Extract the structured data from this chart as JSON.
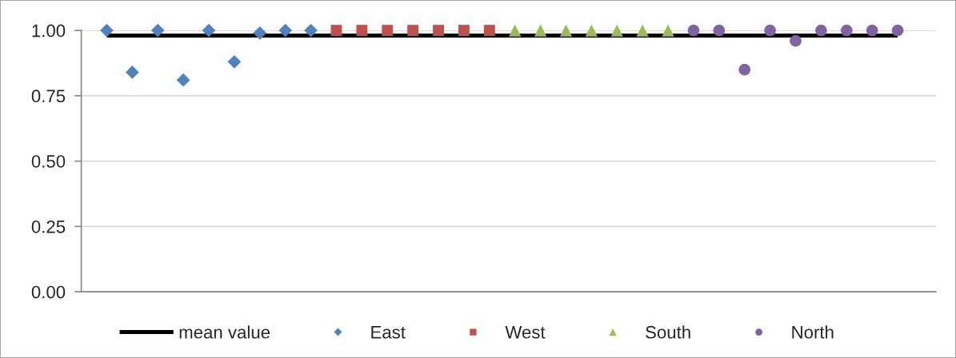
{
  "chart_data": {
    "type": "scatter",
    "categories": [
      null,
      null,
      null,
      null,
      null,
      null,
      null,
      null,
      null,
      null,
      null,
      null,
      null,
      null,
      null,
      null,
      null,
      null,
      null,
      null,
      null,
      null,
      null,
      null,
      null,
      null,
      null,
      null,
      null,
      null,
      null,
      null
    ],
    "series": [
      {
        "name": "mean value",
        "type": "line",
        "color": "#000000",
        "marker": "none",
        "values": [
          0.98,
          0.98,
          0.98,
          0.98,
          0.98,
          0.98,
          0.98,
          0.98,
          0.98,
          0.98,
          0.98,
          0.98,
          0.98,
          0.98,
          0.98,
          0.98,
          0.98,
          0.98,
          0.98,
          0.98,
          0.98,
          0.98,
          0.98,
          0.98,
          0.98,
          0.98,
          0.98,
          0.98,
          0.98,
          0.98,
          0.98,
          0.98
        ]
      },
      {
        "name": "East",
        "color": "#4f81bd",
        "marker": "diamond",
        "values": [
          1.0,
          0.84,
          1.0,
          0.81,
          1.0,
          0.88,
          0.99,
          1.0,
          1.0,
          null,
          null,
          null,
          null,
          null,
          null,
          null,
          null,
          null,
          null,
          null,
          null,
          null,
          null,
          null,
          null,
          null,
          null,
          null,
          null,
          null,
          null,
          null
        ]
      },
      {
        "name": "West",
        "color": "#c0504d",
        "marker": "square",
        "values": [
          null,
          null,
          null,
          null,
          null,
          null,
          null,
          null,
          null,
          1.0,
          1.0,
          1.0,
          1.0,
          1.0,
          1.0,
          1.0,
          null,
          null,
          null,
          null,
          null,
          null,
          null,
          null,
          null,
          null,
          null,
          null,
          null,
          null,
          null,
          null
        ]
      },
      {
        "name": "South",
        "color": "#9bbb59",
        "marker": "triangle",
        "values": [
          null,
          null,
          null,
          null,
          null,
          null,
          null,
          null,
          null,
          null,
          null,
          null,
          null,
          null,
          null,
          null,
          1.0,
          1.0,
          1.0,
          1.0,
          1.0,
          1.0,
          1.0,
          null,
          null,
          null,
          null,
          null,
          null,
          null,
          null,
          null
        ]
      },
      {
        "name": "North",
        "color": "#8064a2",
        "marker": "circle",
        "values": [
          null,
          null,
          null,
          null,
          null,
          null,
          null,
          null,
          null,
          null,
          null,
          null,
          null,
          null,
          null,
          null,
          null,
          null,
          null,
          null,
          null,
          null,
          null,
          1.0,
          1.0,
          0.85,
          1.0,
          0.96,
          1.0,
          1.0,
          1.0,
          1.0
        ]
      }
    ],
    "ylim": [
      0,
      1
    ],
    "yticks": [
      {
        "value": 0,
        "label": "0.00"
      },
      {
        "value": 0.25,
        "label": "0.25"
      },
      {
        "value": 0.5,
        "label": "0.50"
      },
      {
        "value": 0.75,
        "label": "0.75"
      },
      {
        "value": 1,
        "label": "1.00"
      }
    ],
    "grid": "y",
    "legend": "bottom"
  }
}
